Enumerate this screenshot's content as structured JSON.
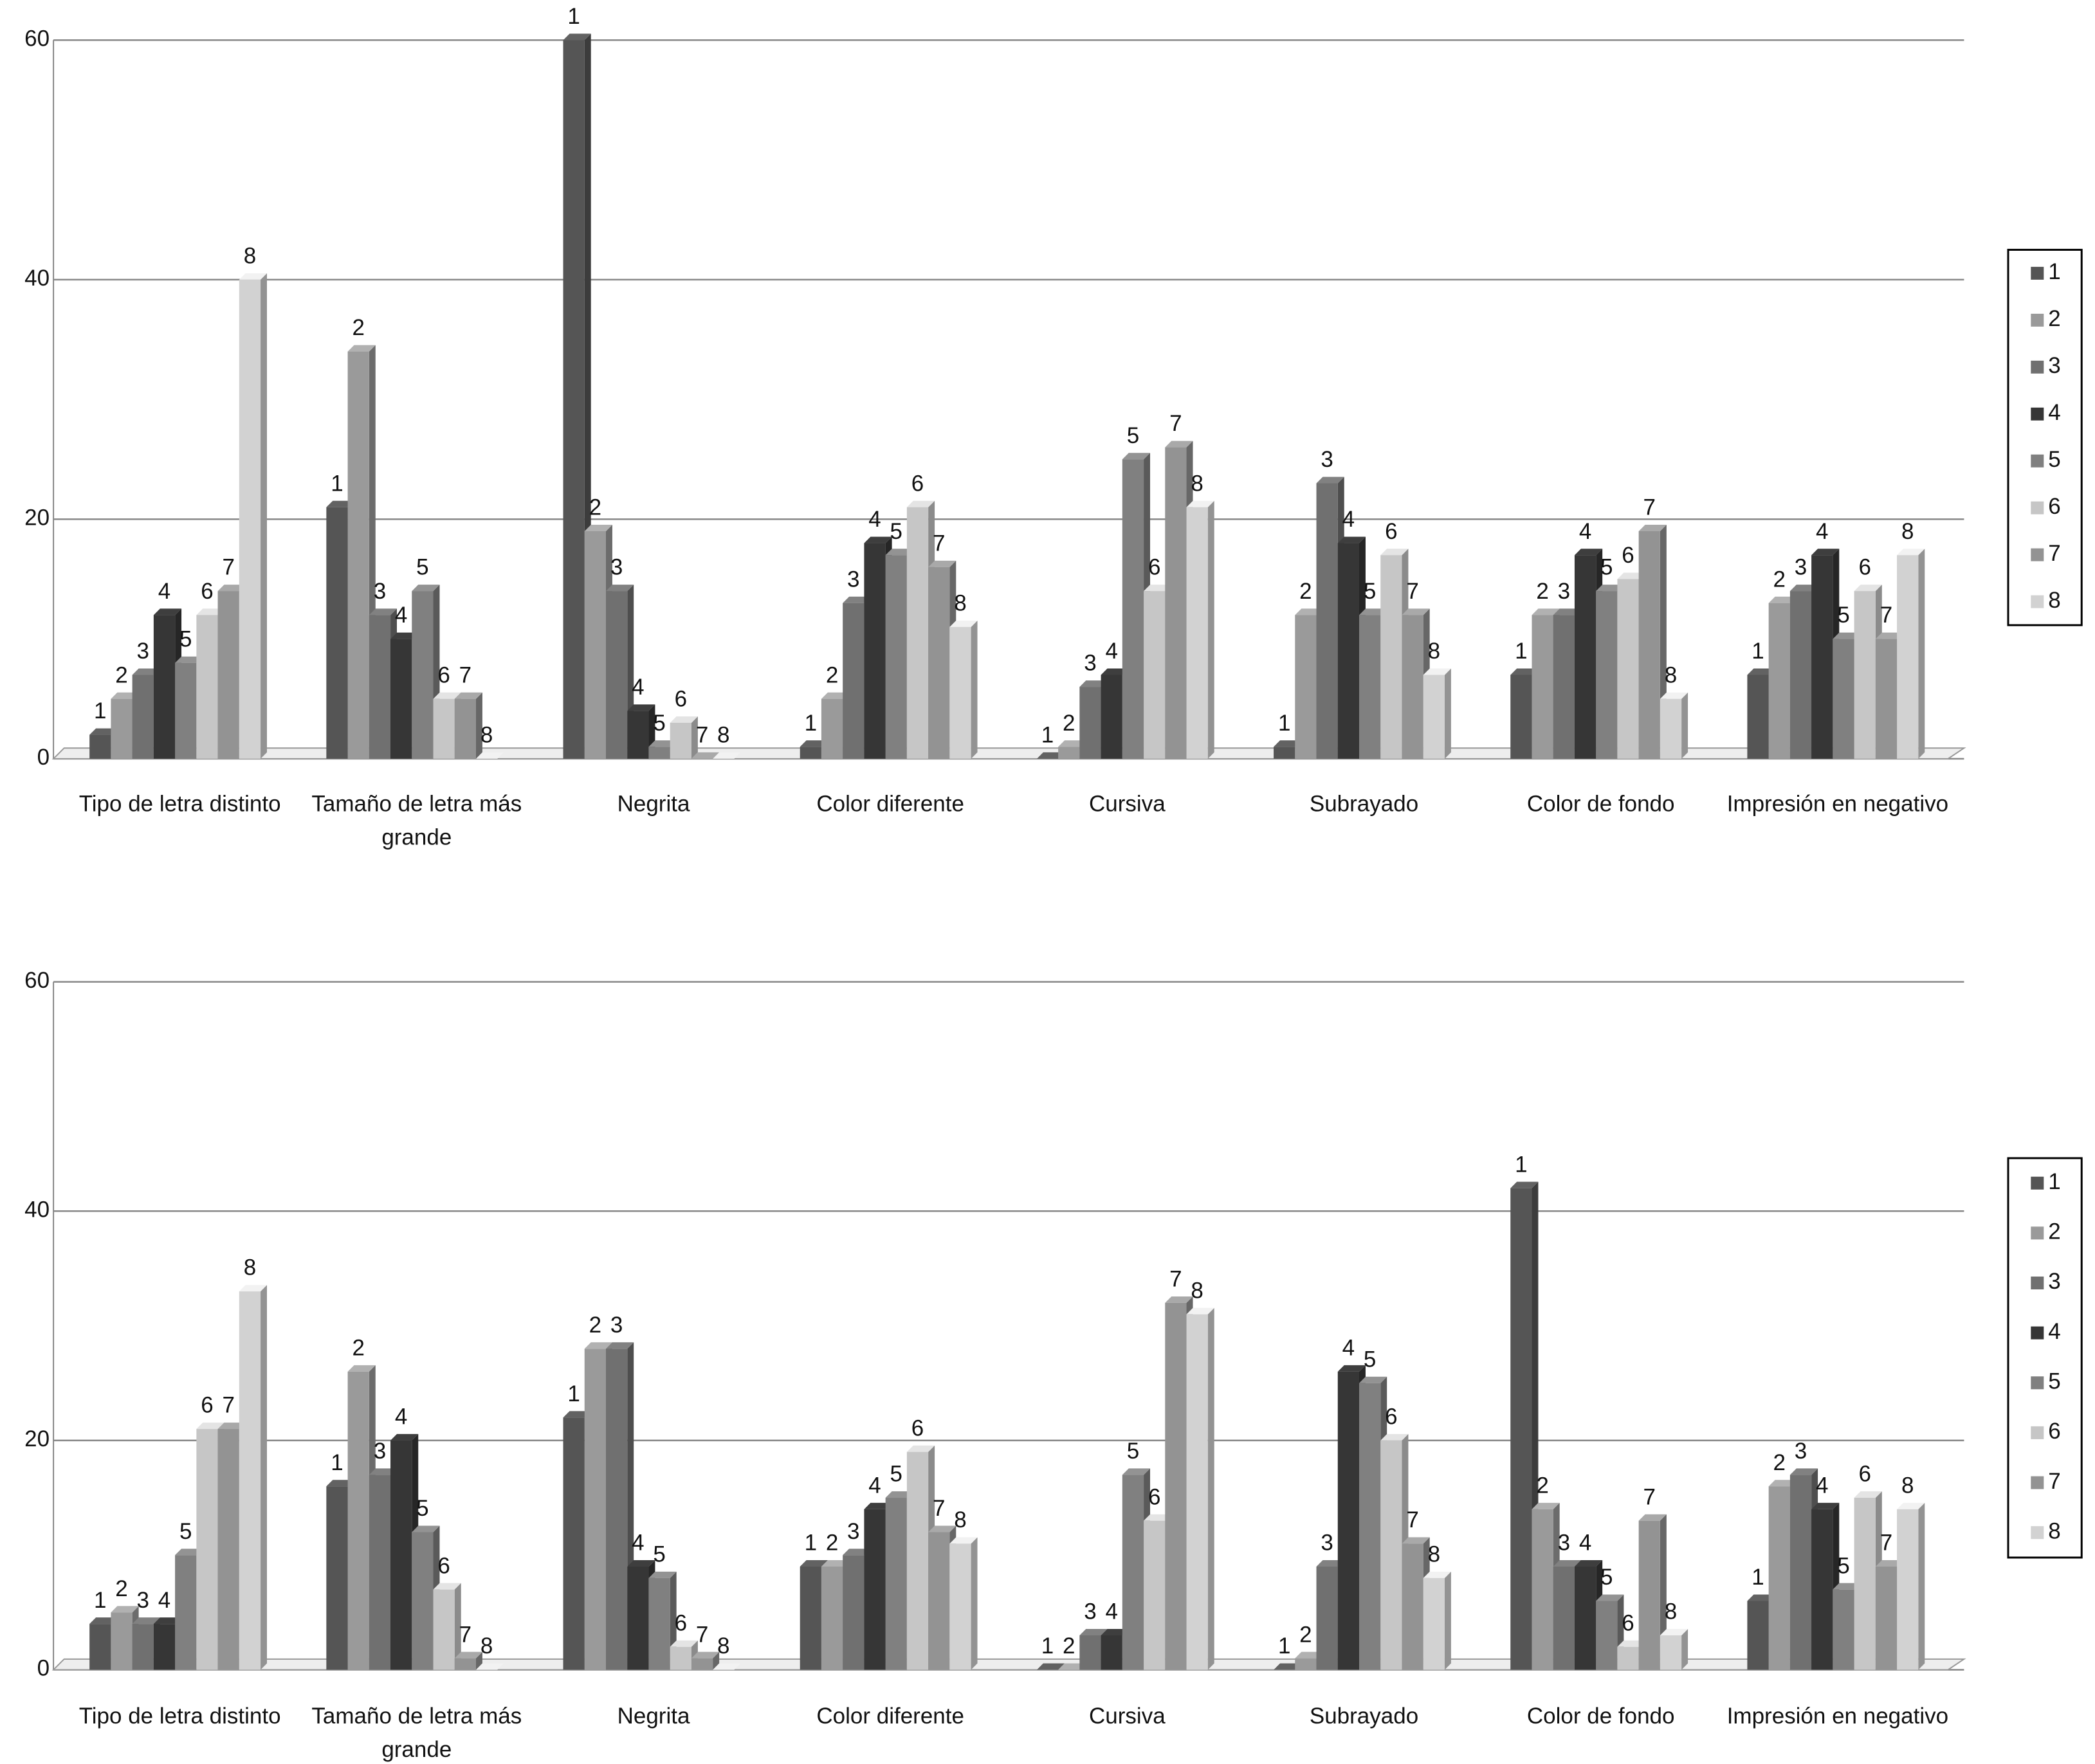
{
  "chart_data": [
    {
      "type": "bar",
      "categories": [
        "Tipo de letra distinto",
        "Tamaño de letra más grande",
        "Negrita",
        "Color diferente",
        "Cursiva",
        "Subrayado",
        "Color de fondo",
        "Impresión en negativo"
      ],
      "series": [
        {
          "name": "1",
          "color": "#555555",
          "values": [
            2,
            21,
            60,
            1,
            0,
            1,
            7,
            7
          ]
        },
        {
          "name": "2",
          "color": "#9a9a9a",
          "values": [
            5,
            34,
            19,
            5,
            1,
            12,
            12,
            13
          ]
        },
        {
          "name": "3",
          "color": "#707070",
          "values": [
            7,
            12,
            14,
            13,
            6,
            23,
            12,
            14
          ]
        },
        {
          "name": "4",
          "color": "#363636",
          "values": [
            12,
            10,
            4,
            18,
            7,
            18,
            17,
            17
          ]
        },
        {
          "name": "5",
          "color": "#808080",
          "values": [
            8,
            14,
            1,
            17,
            25,
            12,
            14,
            10
          ]
        },
        {
          "name": "6",
          "color": "#c6c6c6",
          "values": [
            12,
            5,
            3,
            21,
            14,
            17,
            15,
            14
          ]
        },
        {
          "name": "7",
          "color": "#939393",
          "values": [
            14,
            5,
            0,
            16,
            26,
            12,
            19,
            10
          ]
        },
        {
          "name": "8",
          "color": "#d2d2d2",
          "values": [
            40,
            0,
            0,
            11,
            21,
            7,
            5,
            17
          ]
        }
      ],
      "ylim": [
        0,
        60
      ],
      "yticks": [
        0,
        20,
        40,
        60
      ],
      "grid": true,
      "legend": "right"
    },
    {
      "type": "bar",
      "categories": [
        "Tipo de letra distinto",
        "Tamaño de letra más grande",
        "Negrita",
        "Color diferente",
        "Cursiva",
        "Subrayado",
        "Color de fondo",
        "Impresión en negativo"
      ],
      "series": [
        {
          "name": "1",
          "color": "#555555",
          "values": [
            4,
            16,
            22,
            9,
            0,
            0,
            42,
            6
          ]
        },
        {
          "name": "2",
          "color": "#9a9a9a",
          "values": [
            5,
            26,
            28,
            9,
            0,
            1,
            14,
            16
          ]
        },
        {
          "name": "3",
          "color": "#707070",
          "values": [
            4,
            17,
            28,
            10,
            3,
            9,
            9,
            17
          ]
        },
        {
          "name": "4",
          "color": "#363636",
          "values": [
            4,
            20,
            9,
            14,
            3,
            26,
            9,
            14
          ]
        },
        {
          "name": "5",
          "color": "#808080",
          "values": [
            10,
            12,
            8,
            15,
            17,
            25,
            6,
            7
          ]
        },
        {
          "name": "6",
          "color": "#c6c6c6",
          "values": [
            21,
            7,
            2,
            19,
            13,
            20,
            2,
            15
          ]
        },
        {
          "name": "7",
          "color": "#939393",
          "values": [
            21,
            1,
            1,
            12,
            32,
            11,
            13,
            9
          ]
        },
        {
          "name": "8",
          "color": "#d2d2d2",
          "values": [
            33,
            0,
            0,
            11,
            31,
            8,
            3,
            14
          ]
        }
      ],
      "ylim": [
        0,
        60
      ],
      "yticks": [
        0,
        20,
        40,
        60
      ],
      "grid": true,
      "legend": "right"
    }
  ]
}
